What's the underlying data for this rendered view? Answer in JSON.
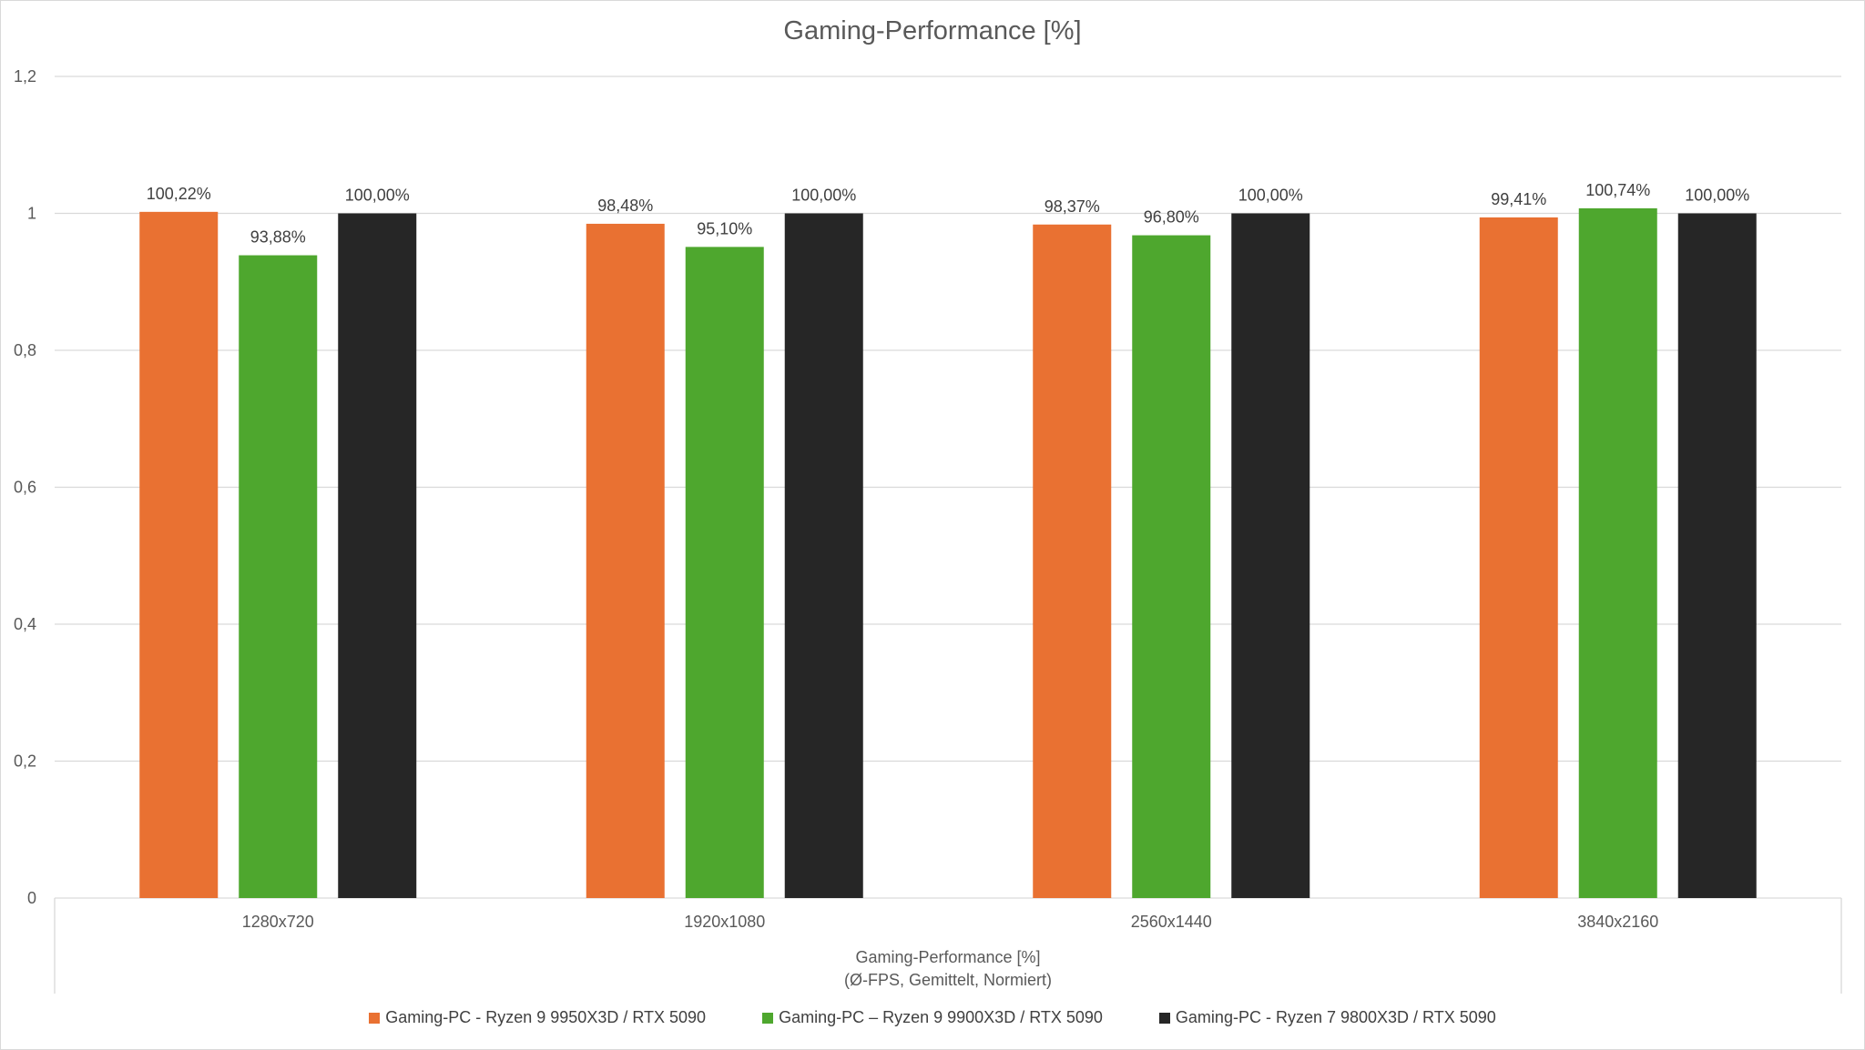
{
  "chart_data": {
    "type": "bar",
    "title": "Gaming-Performance  [%]",
    "categories": [
      "1280x720",
      "1920x1080",
      "2560x1440",
      "3840x2160"
    ],
    "xlabel": "Gaming-Performance [%]",
    "xlabel_sub": "(Ø-FPS, Gemittelt, Normiert)",
    "ylabel": "",
    "ylim": [
      0,
      1.2
    ],
    "yticks": [
      0,
      0.2,
      0.4,
      0.6,
      0.8,
      1,
      1.2
    ],
    "ytick_labels": [
      "0",
      "0,2",
      "0,4",
      "0,6",
      "0,8",
      "1",
      "1,2"
    ],
    "grid": true,
    "legend_position": "bottom",
    "series": [
      {
        "name": "Gaming-PC - Ryzen 9 9950X3D / RTX 5090",
        "color": "#E97132",
        "values": [
          1.0022,
          0.9848,
          0.9837,
          0.9941
        ],
        "labels": [
          "100,22%",
          "98,48%",
          "98,37%",
          "99,41%"
        ]
      },
      {
        "name": "Gaming-PC – Ryzen 9 9900X3D / RTX 5090",
        "color": "#4EA72E",
        "values": [
          0.9388,
          0.951,
          0.968,
          1.0074
        ],
        "labels": [
          "93,88%",
          "95,10%",
          "96,80%",
          "100,74%"
        ]
      },
      {
        "name": "Gaming-PC - Ryzen 7 9800X3D / RTX 5090",
        "color": "#262626",
        "values": [
          1.0,
          1.0,
          1.0,
          1.0
        ],
        "labels": [
          "100,00%",
          "100,00%",
          "100,00%",
          "100,00%"
        ]
      }
    ]
  }
}
